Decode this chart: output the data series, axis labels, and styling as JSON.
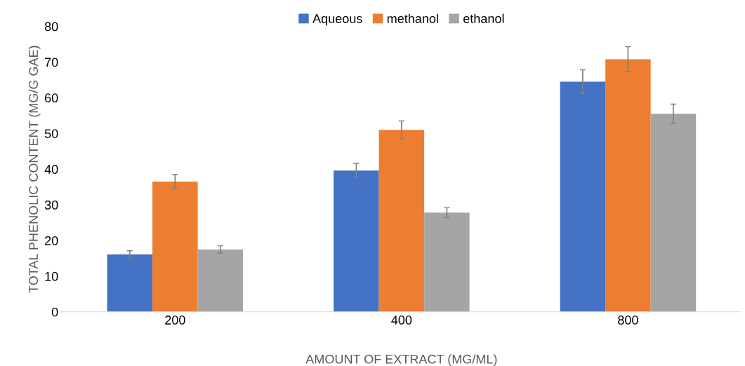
{
  "chart_data": {
    "type": "bar",
    "xlabel": "AMOUNT OF EXTRACT (MG/ML)",
    "ylabel": "TOTAL PHENOLIC CONTENT (MG/G GAE)",
    "categories": [
      "200",
      "400",
      "800"
    ],
    "series": [
      {
        "name": "Aqueous",
        "color": "#4472c4",
        "values": [
          16.1,
          39.6,
          64.5
        ],
        "errors": [
          1,
          2,
          3.3
        ]
      },
      {
        "name": "methanol",
        "color": "#ed7d31",
        "values": [
          36.5,
          51,
          70.8
        ],
        "errors": [
          2,
          2.5,
          3.5
        ]
      },
      {
        "name": "ethanol",
        "color": "#a5a5a5",
        "values": [
          17.5,
          27.8,
          55.5
        ],
        "errors": [
          1,
          1.4,
          2.7
        ]
      }
    ],
    "ylim": [
      0,
      80
    ],
    "yticks": [
      0,
      10,
      20,
      30,
      40,
      50,
      60,
      70,
      80
    ],
    "grid": false,
    "legend": "top"
  }
}
